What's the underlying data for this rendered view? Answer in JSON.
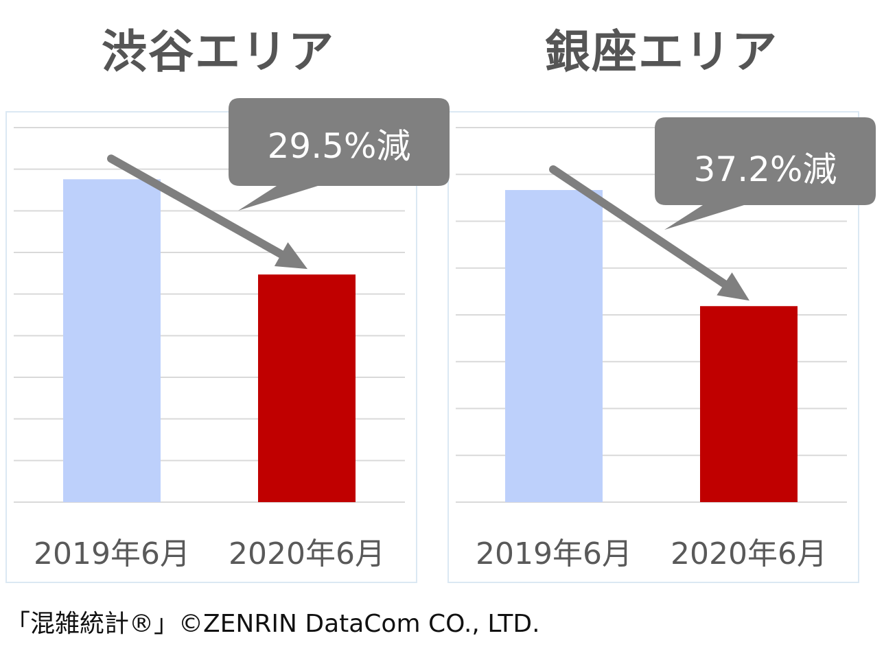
{
  "chart_data": [
    {
      "type": "bar",
      "title": "渋谷エリア",
      "categories": [
        "2019年6月",
        "2020年6月"
      ],
      "values": [
        100,
        70.5
      ],
      "ylim": [
        0,
        116
      ],
      "gridlines": 9,
      "grid": true,
      "bar_colors": [
        "#bdd0fb",
        "#c00000"
      ],
      "annotation": "29.5%減"
    },
    {
      "type": "bar",
      "title": "銀座エリア",
      "categories": [
        "2019年6月",
        "2020年6月"
      ],
      "values": [
        100,
        62.8
      ],
      "ylim": [
        0,
        120
      ],
      "gridlines": 8,
      "grid": true,
      "bar_colors": [
        "#bdd0fb",
        "#c00000"
      ],
      "annotation": "37.2%減"
    }
  ],
  "colors": {
    "title": "#555555",
    "callout": "#808080",
    "arrow": "#7f7f7f",
    "grid": "#d9d9d9",
    "panel_border": "#dbe8f3"
  },
  "footer": {
    "source": "「混雑統計®」©ZENRIN DataCom CO., LTD."
  }
}
